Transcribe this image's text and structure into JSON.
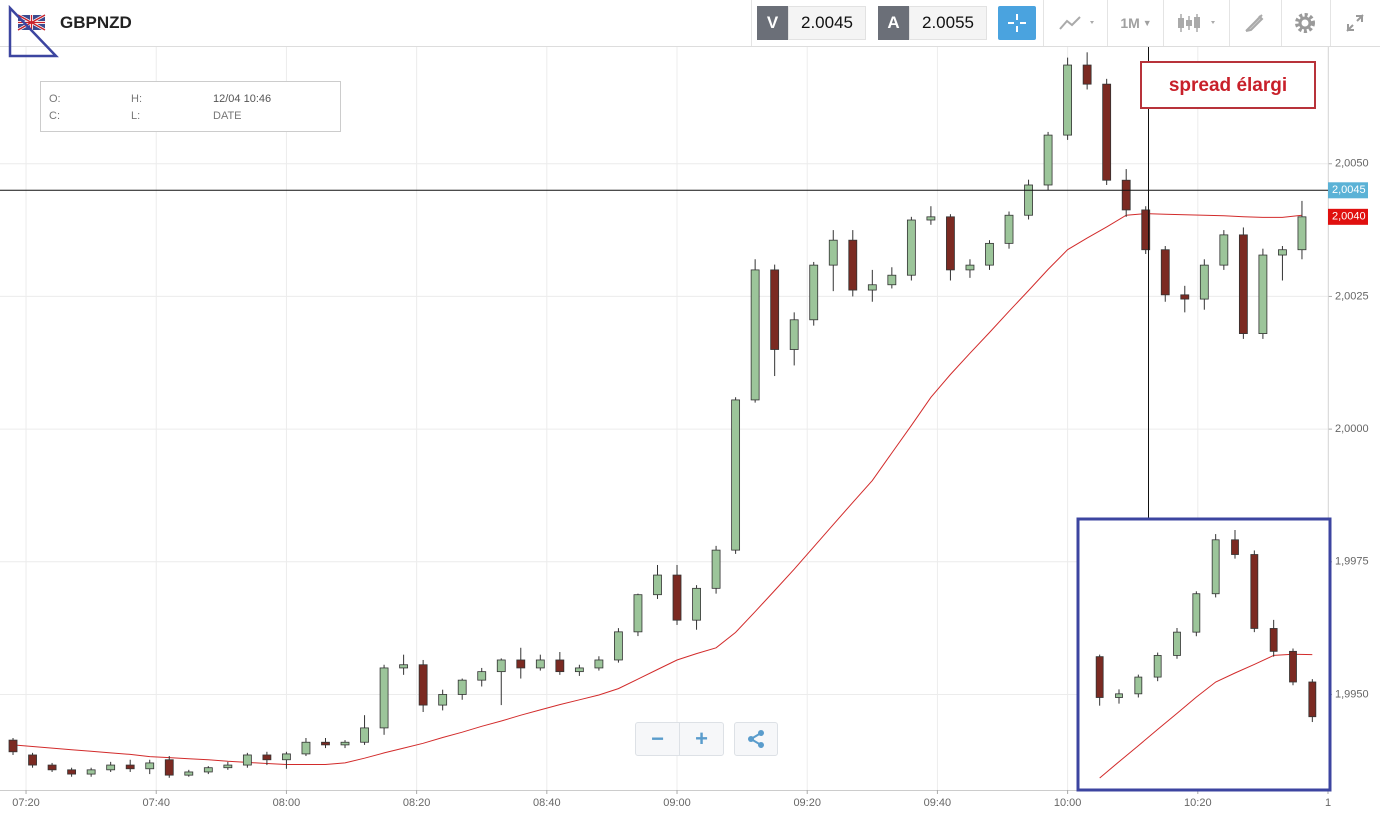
{
  "toolbar": {
    "symbol": "GBPNZD",
    "bid_label": "V",
    "bid": 2.0045,
    "ask_label": "A",
    "ask": 2.0055,
    "timeframe": "1M"
  },
  "info_box": {
    "open_label": "O:",
    "high_label": "H:",
    "date_value": "12/04 10:46",
    "close_label": "C:",
    "low_label": "L:",
    "date_label": "DATE"
  },
  "chart_data": {
    "type": "candlestick",
    "annotation": "spread élargi",
    "x": [
      "07:18",
      "07:21",
      "07:24",
      "07:27",
      "07:30",
      "07:33",
      "07:36",
      "07:39",
      "07:42",
      "07:45",
      "07:48",
      "07:51",
      "07:54",
      "07:57",
      "08:00",
      "08:03",
      "08:06",
      "08:09",
      "08:12",
      "08:15",
      "08:18",
      "08:21",
      "08:24",
      "08:27",
      "08:30",
      "08:33",
      "08:36",
      "08:39",
      "08:42",
      "08:45",
      "08:48",
      "08:51",
      "08:54",
      "08:57",
      "09:00",
      "09:03",
      "09:06",
      "09:09",
      "09:12",
      "09:15",
      "09:18",
      "09:21",
      "09:24",
      "09:27",
      "09:30",
      "09:33",
      "09:36",
      "09:39",
      "09:42",
      "09:45",
      "09:48",
      "09:51",
      "09:54",
      "09:57",
      "10:00",
      "10:03",
      "10:06",
      "10:09",
      "10:12",
      "10:15",
      "10:18",
      "10:21",
      "10:24",
      "10:27",
      "10:30",
      "10:33",
      "10:36"
    ],
    "open": [
      1.99414,
      1.99386,
      1.99367,
      1.99358,
      1.9935,
      1.99358,
      1.99367,
      1.9936,
      1.99377,
      1.99348,
      1.99354,
      1.99362,
      1.99367,
      1.99386,
      1.99377,
      1.99388,
      1.9941,
      1.99405,
      1.9941,
      1.99437,
      1.9955,
      1.99556,
      1.9948,
      1.995,
      1.99527,
      1.99543,
      1.99565,
      1.9955,
      1.99565,
      1.99543,
      1.9955,
      1.99565,
      1.99618,
      1.99688,
      1.99725,
      1.9964,
      1.997,
      1.99772,
      2.00055,
      2.003,
      2.0015,
      2.00206,
      2.00309,
      2.00356,
      2.00262,
      2.00272,
      2.0029,
      2.00394,
      2.004,
      2.003,
      2.00309,
      2.0035,
      2.00403,
      2.0046,
      2.00554,
      2.00686,
      2.0065,
      2.00469,
      2.00413,
      2.00338,
      2.00253,
      2.00245,
      2.00309,
      2.00366,
      2.0018,
      2.00328,
      2.00338
    ],
    "high": [
      1.99418,
      1.9939,
      1.99371,
      1.99362,
      1.99362,
      1.99373,
      1.99377,
      1.99377,
      1.99384,
      1.99358,
      1.99365,
      1.99373,
      1.9939,
      1.99392,
      1.99392,
      1.99418,
      1.99418,
      1.99414,
      1.99461,
      1.99556,
      1.99575,
      1.99565,
      1.99509,
      1.9953,
      1.9955,
      1.99568,
      1.99588,
      1.99575,
      1.9958,
      1.99556,
      1.99572,
      1.99625,
      1.9969,
      1.99744,
      1.99744,
      1.99706,
      1.9978,
      2.0006,
      2.0032,
      2.0031,
      2.0022,
      2.00315,
      2.00375,
      2.00375,
      2.003,
      2.00305,
      2.004,
      2.0042,
      2.00405,
      2.0032,
      2.00356,
      2.0041,
      2.0047,
      2.0056,
      2.007,
      2.0071,
      2.0066,
      2.0049,
      2.0042,
      2.00345,
      2.0027,
      2.0032,
      2.00375,
      2.0038,
      2.0034,
      2.00345,
      2.0043
    ],
    "low": [
      1.99386,
      1.99362,
      1.99354,
      1.99345,
      1.99345,
      1.99354,
      1.99354,
      1.9935,
      1.99343,
      1.99345,
      1.9935,
      1.99358,
      1.99362,
      1.99367,
      1.9936,
      1.99384,
      1.99399,
      1.99399,
      1.99405,
      1.99424,
      1.99537,
      1.99467,
      1.9947,
      1.9949,
      1.99515,
      1.9948,
      1.9953,
      1.99545,
      1.99537,
      1.99535,
      1.99545,
      1.9956,
      1.9961,
      1.9968,
      1.99631,
      1.99622,
      1.9969,
      1.99765,
      2.0005,
      2.001,
      2.0012,
      2.00195,
      2.0026,
      2.0025,
      2.0024,
      2.00265,
      2.0028,
      2.00385,
      2.0028,
      2.00285,
      2.003,
      2.0034,
      2.00395,
      2.0045,
      2.00545,
      2.0064,
      2.0046,
      2.004,
      2.0033,
      2.0024,
      2.0022,
      2.00225,
      2.003,
      2.0017,
      2.0017,
      2.0028,
      2.0032
    ],
    "close": [
      1.99392,
      1.99367,
      1.99358,
      1.9935,
      1.99358,
      1.99367,
      1.9936,
      1.99371,
      1.99348,
      1.99354,
      1.99362,
      1.99367,
      1.99386,
      1.99377,
      1.99388,
      1.9941,
      1.99405,
      1.9941,
      1.99437,
      1.9955,
      1.99556,
      1.9948,
      1.995,
      1.99527,
      1.99543,
      1.99565,
      1.9955,
      1.99565,
      1.99543,
      1.9955,
      1.99565,
      1.99618,
      1.99688,
      1.99725,
      1.9964,
      1.997,
      1.99772,
      2.00055,
      2.003,
      2.0015,
      2.00206,
      2.00309,
      2.00356,
      2.00262,
      2.00272,
      2.0029,
      2.00394,
      2.004,
      2.003,
      2.00309,
      2.0035,
      2.00403,
      2.0046,
      2.00554,
      2.00686,
      2.0065,
      2.00469,
      2.00413,
      2.00338,
      2.00253,
      2.00245,
      2.00309,
      2.00366,
      2.0018,
      2.00328,
      2.00338,
      2.004
    ],
    "up_color": "#9cc59a",
    "down_color": "#7b2a22",
    "moving_average": {
      "color": "#d22b2b",
      "values": [
        1.99405,
        1.99402,
        1.99399,
        1.99396,
        1.99393,
        1.9939,
        1.99387,
        1.99383,
        1.99381,
        1.99379,
        1.99377,
        1.99374,
        1.99372,
        1.9937,
        1.99368,
        1.99368,
        1.99368,
        1.99371,
        1.9938,
        1.9939,
        1.99399,
        1.99408,
        1.99419,
        1.99429,
        1.9944,
        1.9945,
        1.99461,
        1.99471,
        1.99481,
        1.9949,
        1.99499,
        1.99511,
        1.99529,
        1.99547,
        1.99565,
        1.99577,
        1.99588,
        1.99617,
        1.99656,
        1.99696,
        1.99736,
        1.99778,
        1.9982,
        1.99862,
        1.99903,
        1.99955,
        2.00007,
        2.0006,
        2.00103,
        2.00143,
        2.00182,
        2.00222,
        2.00261,
        2.00301,
        2.00338,
        2.0036,
        2.00381,
        2.00403,
        2.00406,
        2.00405,
        2.00404,
        2.00403,
        2.00402,
        2.004,
        2.00399,
        2.00399,
        2.00403
      ]
    },
    "xlim": [
      "07:16",
      "10:40"
    ],
    "xticks": [
      "07:20",
      "07:40",
      "08:00",
      "08:20",
      "08:40",
      "09:00",
      "09:20",
      "09:40",
      "10:00",
      "10:20",
      {
        "value": "10:40",
        "label": "1"
      }
    ],
    "ylim": [
      1.9932,
      2.0072
    ],
    "yticks": [
      {
        "value": 1.995,
        "label": "1,9950"
      },
      {
        "value": 1.9975,
        "label": "1,9975"
      },
      {
        "value": 2.0,
        "label": "2,0000"
      },
      {
        "value": 2.0025,
        "label": "2,0025"
      },
      {
        "value": 2.005,
        "label": "2,0050"
      }
    ],
    "grid": true,
    "crosshair": {
      "value": 2.0045,
      "label": "2,0045",
      "color": "#5bb2d6"
    },
    "last_price": {
      "value": 2.004,
      "label": "2,0040",
      "color": "#e0100f"
    }
  }
}
